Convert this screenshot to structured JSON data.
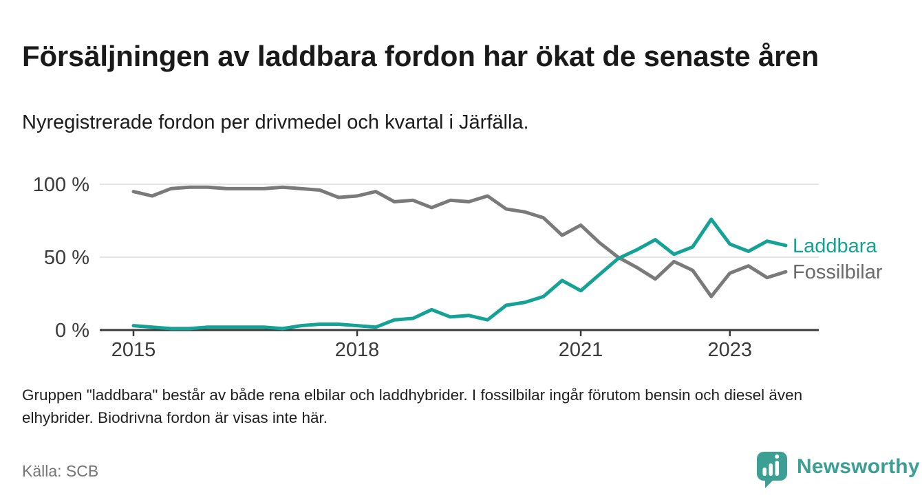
{
  "header": {
    "title": "Försäljningen av laddbara fordon har ökat de senaste åren",
    "subtitle": "Nyregistrerade fordon per drivmedel och kvartal i Järfälla."
  },
  "chart_data": {
    "type": "line",
    "title": "Försäljningen av laddbara fordon har ökat de senaste åren",
    "subtitle": "Nyregistrerade fordon per drivmedel och kvartal i Järfälla.",
    "unit": "%",
    "ylim": [
      0,
      100
    ],
    "grid": "horizontal-only",
    "legend": "line-end-labels",
    "categories": [
      "2015 Q1",
      "2015 Q2",
      "2015 Q3",
      "2015 Q4",
      "2016 Q1",
      "2016 Q2",
      "2016 Q3",
      "2016 Q4",
      "2017 Q1",
      "2017 Q2",
      "2017 Q3",
      "2017 Q4",
      "2018 Q1",
      "2018 Q2",
      "2018 Q3",
      "2018 Q4",
      "2019 Q1",
      "2019 Q2",
      "2019 Q3",
      "2019 Q4",
      "2020 Q1",
      "2020 Q2",
      "2020 Q3",
      "2020 Q4",
      "2021 Q1",
      "2021 Q2",
      "2021 Q3",
      "2021 Q4",
      "2022 Q1",
      "2022 Q2",
      "2022 Q3",
      "2022 Q4",
      "2023 Q1",
      "2023 Q2",
      "2023 Q3",
      "2023 Q4"
    ],
    "series": [
      {
        "name": "Laddbara",
        "color": "#14a296",
        "label_color": "#14a296",
        "values": [
          3,
          2,
          1,
          1,
          2,
          2,
          2,
          2,
          1,
          3,
          4,
          4,
          3,
          2,
          7,
          8,
          14,
          9,
          10,
          7,
          17,
          19,
          23,
          34,
          27,
          38,
          49,
          55,
          62,
          52,
          57,
          76,
          59,
          54,
          61,
          58
        ]
      },
      {
        "name": "Fossilbilar",
        "color": "#7a7a7a",
        "label_color": "#6b6b6b",
        "values": [
          95,
          92,
          97,
          98,
          98,
          97,
          97,
          97,
          98,
          97,
          96,
          91,
          92,
          95,
          88,
          89,
          84,
          89,
          88,
          92,
          83,
          81,
          77,
          65,
          72,
          60,
          50,
          43,
          35,
          47,
          41,
          23,
          39,
          44,
          36,
          40
        ]
      }
    ],
    "y_ticks": [
      {
        "value": 100,
        "label": "100 %"
      },
      {
        "value": 50,
        "label": "50 %"
      },
      {
        "value": 0,
        "label": "0 %"
      }
    ],
    "x_ticks": [
      {
        "index": 0,
        "label": "2015"
      },
      {
        "index": 12,
        "label": "2018"
      },
      {
        "index": 24,
        "label": "2021"
      },
      {
        "index": 32,
        "label": "2023"
      }
    ]
  },
  "footer": {
    "note_line1": "Gruppen \"laddbara\" består av både rena elbilar och laddhybrider. I fossilbilar ingår förutom bensin och diesel även",
    "note_line2": "elhybrider. Biodrivna fordon är visas inte här.",
    "source": "Källa: SCB"
  },
  "branding": {
    "logo_text": "Newsworthy"
  },
  "colors": {
    "accent_teal": "#14a296",
    "line_gray": "#7a7a7a",
    "axis": "#3a3a3a",
    "gridline": "#dcdcdc",
    "logo_teal": "#3ba093"
  }
}
